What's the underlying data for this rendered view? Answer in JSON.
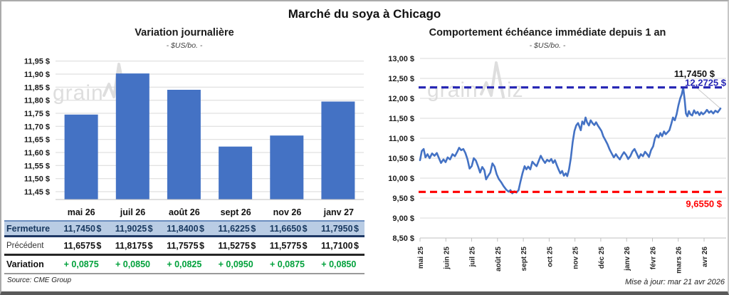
{
  "page": {
    "title": "Marché du soya à Chicago",
    "source": "Source: CME Group",
    "updated": "Mise à jour: mar 21 avr 2026",
    "watermark": "grainwiz"
  },
  "colors": {
    "bar": "#4472C4",
    "line": "#4472C4",
    "ref_high": "#2424B4",
    "ref_low": "#FF0000",
    "positive": "#00A13B",
    "fermeture_bg": "#B9CCE4",
    "fermeture_text": "#17375E",
    "grid": "#D9D9D9",
    "axis": "#BFBFBF",
    "watermark": "#DBDBDB"
  },
  "table": {
    "columns": [
      "mai 26",
      "juil 26",
      "août 26",
      "sept 26",
      "nov 26",
      "janv 27"
    ],
    "rows": [
      {
        "label": "Fermeture",
        "style": "fermeture",
        "values": [
          "11,7450 $",
          "11,9025 $",
          "11,8400 $",
          "11,6225 $",
          "11,6650 $",
          "11,7950 $"
        ]
      },
      {
        "label": "Précédent",
        "style": "precedent",
        "values": [
          "11,6575 $",
          "11,8175 $",
          "11,7575 $",
          "11,5275 $",
          "11,5775 $",
          "11,7100 $"
        ]
      },
      {
        "label": "Variation",
        "style": "variation",
        "values": [
          "+ 0,0875",
          "+ 0,0850",
          "+ 0,0825",
          "+ 0,0950",
          "+ 0,0875",
          "+ 0,0850"
        ]
      }
    ]
  },
  "chart_data": [
    {
      "type": "bar",
      "title": "Variation journalière",
      "subtitle": "- $US/bo. -",
      "categories": [
        "mai 26",
        "juil 26",
        "août 26",
        "sept 26",
        "nov 26",
        "janv 27"
      ],
      "values": [
        11.745,
        11.9025,
        11.84,
        11.6225,
        11.665,
        11.795
      ],
      "xlabel": "",
      "ylabel": "$US/bo.",
      "ylim": [
        11.42,
        11.96
      ],
      "yticks": [
        11.45,
        11.5,
        11.55,
        11.6,
        11.65,
        11.7,
        11.75,
        11.8,
        11.85,
        11.9,
        11.95
      ],
      "grid": true,
      "legend": "none"
    },
    {
      "type": "line",
      "title": "Comportement échéance immédiate depuis 1 an",
      "subtitle": "- $US/bo. -",
      "xlabel": "",
      "ylabel": "$US/bo.",
      "x_ticks": [
        "mai 25",
        "juin 25",
        "juil 25",
        "août 25",
        "sept 25",
        "oct 25",
        "nov 25",
        "déc 25",
        "janv 26",
        "févr 26",
        "mars 26",
        "avr 26"
      ],
      "ylim": [
        8.5,
        13.0
      ],
      "yticks": [
        8.5,
        9.0,
        9.5,
        10.0,
        10.5,
        11.0,
        11.5,
        12.0,
        12.5,
        13.0
      ],
      "grid": true,
      "legend": "none",
      "last_value": 11.745,
      "last_point_label": "11,7450 $",
      "ref_lines": [
        {
          "value": 12.2725,
          "label": "12,2725 $",
          "color": "#2424B4",
          "role": "52-week-high"
        },
        {
          "value": 9.655,
          "label": "9,6550 $",
          "color": "#FF0000",
          "role": "52-week-low"
        }
      ],
      "series": [
        {
          "name": "Échéance immédiate",
          "color": "#4472C4",
          "points": [
            [
              0.0,
              10.45
            ],
            [
              0.006,
              10.68
            ],
            [
              0.012,
              10.73
            ],
            [
              0.018,
              10.52
            ],
            [
              0.025,
              10.6
            ],
            [
              0.032,
              10.5
            ],
            [
              0.04,
              10.62
            ],
            [
              0.048,
              10.56
            ],
            [
              0.056,
              10.63
            ],
            [
              0.063,
              10.5
            ],
            [
              0.07,
              10.38
            ],
            [
              0.078,
              10.47
            ],
            [
              0.085,
              10.4
            ],
            [
              0.092,
              10.52
            ],
            [
              0.1,
              10.47
            ],
            [
              0.108,
              10.6
            ],
            [
              0.116,
              10.55
            ],
            [
              0.124,
              10.66
            ],
            [
              0.13,
              10.76
            ],
            [
              0.137,
              10.7
            ],
            [
              0.144,
              10.73
            ],
            [
              0.151,
              10.63
            ],
            [
              0.158,
              10.47
            ],
            [
              0.165,
              10.24
            ],
            [
              0.172,
              10.3
            ],
            [
              0.179,
              10.5
            ],
            [
              0.186,
              10.44
            ],
            [
              0.193,
              10.3
            ],
            [
              0.2,
              10.14
            ],
            [
              0.207,
              10.28
            ],
            [
              0.214,
              10.2
            ],
            [
              0.22,
              9.97
            ],
            [
              0.227,
              10.06
            ],
            [
              0.234,
              10.14
            ],
            [
              0.241,
              10.37
            ],
            [
              0.248,
              10.29
            ],
            [
              0.255,
              10.1
            ],
            [
              0.262,
              9.98
            ],
            [
              0.27,
              9.9
            ],
            [
              0.278,
              9.8
            ],
            [
              0.287,
              9.71
            ],
            [
              0.295,
              9.66
            ],
            [
              0.301,
              9.7
            ],
            [
              0.307,
              9.62
            ],
            [
              0.314,
              9.67
            ],
            [
              0.321,
              9.64
            ],
            [
              0.328,
              9.7
            ],
            [
              0.334,
              9.9
            ],
            [
              0.341,
              10.12
            ],
            [
              0.348,
              10.3
            ],
            [
              0.354,
              10.22
            ],
            [
              0.36,
              10.29
            ],
            [
              0.367,
              10.22
            ],
            [
              0.374,
              10.41
            ],
            [
              0.381,
              10.35
            ],
            [
              0.388,
              10.3
            ],
            [
              0.395,
              10.43
            ],
            [
              0.402,
              10.56
            ],
            [
              0.409,
              10.46
            ],
            [
              0.416,
              10.38
            ],
            [
              0.423,
              10.46
            ],
            [
              0.43,
              10.42
            ],
            [
              0.437,
              10.48
            ],
            [
              0.443,
              10.38
            ],
            [
              0.449,
              10.45
            ],
            [
              0.455,
              10.33
            ],
            [
              0.461,
              10.22
            ],
            [
              0.467,
              10.12
            ],
            [
              0.473,
              10.18
            ],
            [
              0.479,
              10.06
            ],
            [
              0.485,
              10.12
            ],
            [
              0.49,
              10.05
            ],
            [
              0.496,
              10.22
            ],
            [
              0.502,
              10.5
            ],
            [
              0.508,
              10.9
            ],
            [
              0.514,
              11.18
            ],
            [
              0.52,
              11.32
            ],
            [
              0.526,
              11.38
            ],
            [
              0.53,
              11.3
            ],
            [
              0.535,
              11.2
            ],
            [
              0.54,
              11.42
            ],
            [
              0.546,
              11.35
            ],
            [
              0.551,
              11.52
            ],
            [
              0.556,
              11.4
            ],
            [
              0.562,
              11.32
            ],
            [
              0.568,
              11.45
            ],
            [
              0.574,
              11.38
            ],
            [
              0.58,
              11.33
            ],
            [
              0.586,
              11.4
            ],
            [
              0.592,
              11.32
            ],
            [
              0.598,
              11.25
            ],
            [
              0.604,
              11.18
            ],
            [
              0.61,
              11.05
            ],
            [
              0.617,
              10.95
            ],
            [
              0.624,
              10.85
            ],
            [
              0.631,
              10.72
            ],
            [
              0.638,
              10.62
            ],
            [
              0.645,
              10.52
            ],
            [
              0.652,
              10.6
            ],
            [
              0.658,
              10.53
            ],
            [
              0.665,
              10.47
            ],
            [
              0.672,
              10.57
            ],
            [
              0.679,
              10.65
            ],
            [
              0.686,
              10.58
            ],
            [
              0.693,
              10.48
            ],
            [
              0.7,
              10.55
            ],
            [
              0.707,
              10.67
            ],
            [
              0.714,
              10.73
            ],
            [
              0.721,
              10.62
            ],
            [
              0.728,
              10.5
            ],
            [
              0.735,
              10.6
            ],
            [
              0.742,
              10.55
            ],
            [
              0.749,
              10.66
            ],
            [
              0.756,
              10.6
            ],
            [
              0.762,
              10.53
            ],
            [
              0.769,
              10.7
            ],
            [
              0.776,
              10.8
            ],
            [
              0.782,
              11.0
            ],
            [
              0.788,
              11.08
            ],
            [
              0.794,
              11.02
            ],
            [
              0.8,
              11.13
            ],
            [
              0.806,
              11.05
            ],
            [
              0.812,
              11.17
            ],
            [
              0.818,
              11.1
            ],
            [
              0.824,
              11.15
            ],
            [
              0.83,
              11.2
            ],
            [
              0.836,
              11.35
            ],
            [
              0.842,
              11.52
            ],
            [
              0.848,
              11.45
            ],
            [
              0.854,
              11.6
            ],
            [
              0.86,
              11.82
            ],
            [
              0.866,
              12.0
            ],
            [
              0.871,
              12.1
            ],
            [
              0.876,
              12.27
            ],
            [
              0.881,
              11.95
            ],
            [
              0.885,
              11.62
            ],
            [
              0.89,
              11.55
            ],
            [
              0.895,
              11.68
            ],
            [
              0.9,
              11.6
            ],
            [
              0.906,
              11.57
            ],
            [
              0.912,
              11.7
            ],
            [
              0.918,
              11.62
            ],
            [
              0.924,
              11.66
            ],
            [
              0.93,
              11.58
            ],
            [
              0.936,
              11.65
            ],
            [
              0.942,
              11.6
            ],
            [
              0.948,
              11.64
            ],
            [
              0.955,
              11.71
            ],
            [
              0.962,
              11.64
            ],
            [
              0.969,
              11.68
            ],
            [
              0.976,
              11.62
            ],
            [
              0.983,
              11.69
            ],
            [
              0.991,
              11.65
            ],
            [
              1.0,
              11.745
            ]
          ]
        }
      ]
    }
  ]
}
